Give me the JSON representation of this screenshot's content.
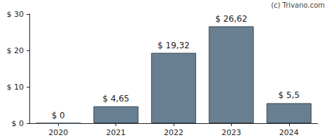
{
  "chart_data": {
    "type": "bar",
    "annotations": [
      "(c) Trivano.com"
    ],
    "categories": [
      "2020",
      "2021",
      "2022",
      "2023",
      "2024"
    ],
    "values": [
      0,
      4.65,
      19.32,
      26.62,
      5.5
    ],
    "value_labels": [
      "$ 0",
      "$ 4,65",
      "$ 19,32",
      "$ 26,62",
      "$ 5,5"
    ],
    "data_labels": true,
    "color": "#687f92",
    "ylim": [
      0,
      30
    ],
    "yticks": [
      {
        "value": 0,
        "label": "$ 0"
      },
      {
        "value": 10,
        "label": "$ 10"
      },
      {
        "value": 20,
        "label": "$ 20"
      },
      {
        "value": 30,
        "label": "$ 30"
      }
    ],
    "grid": false
  }
}
